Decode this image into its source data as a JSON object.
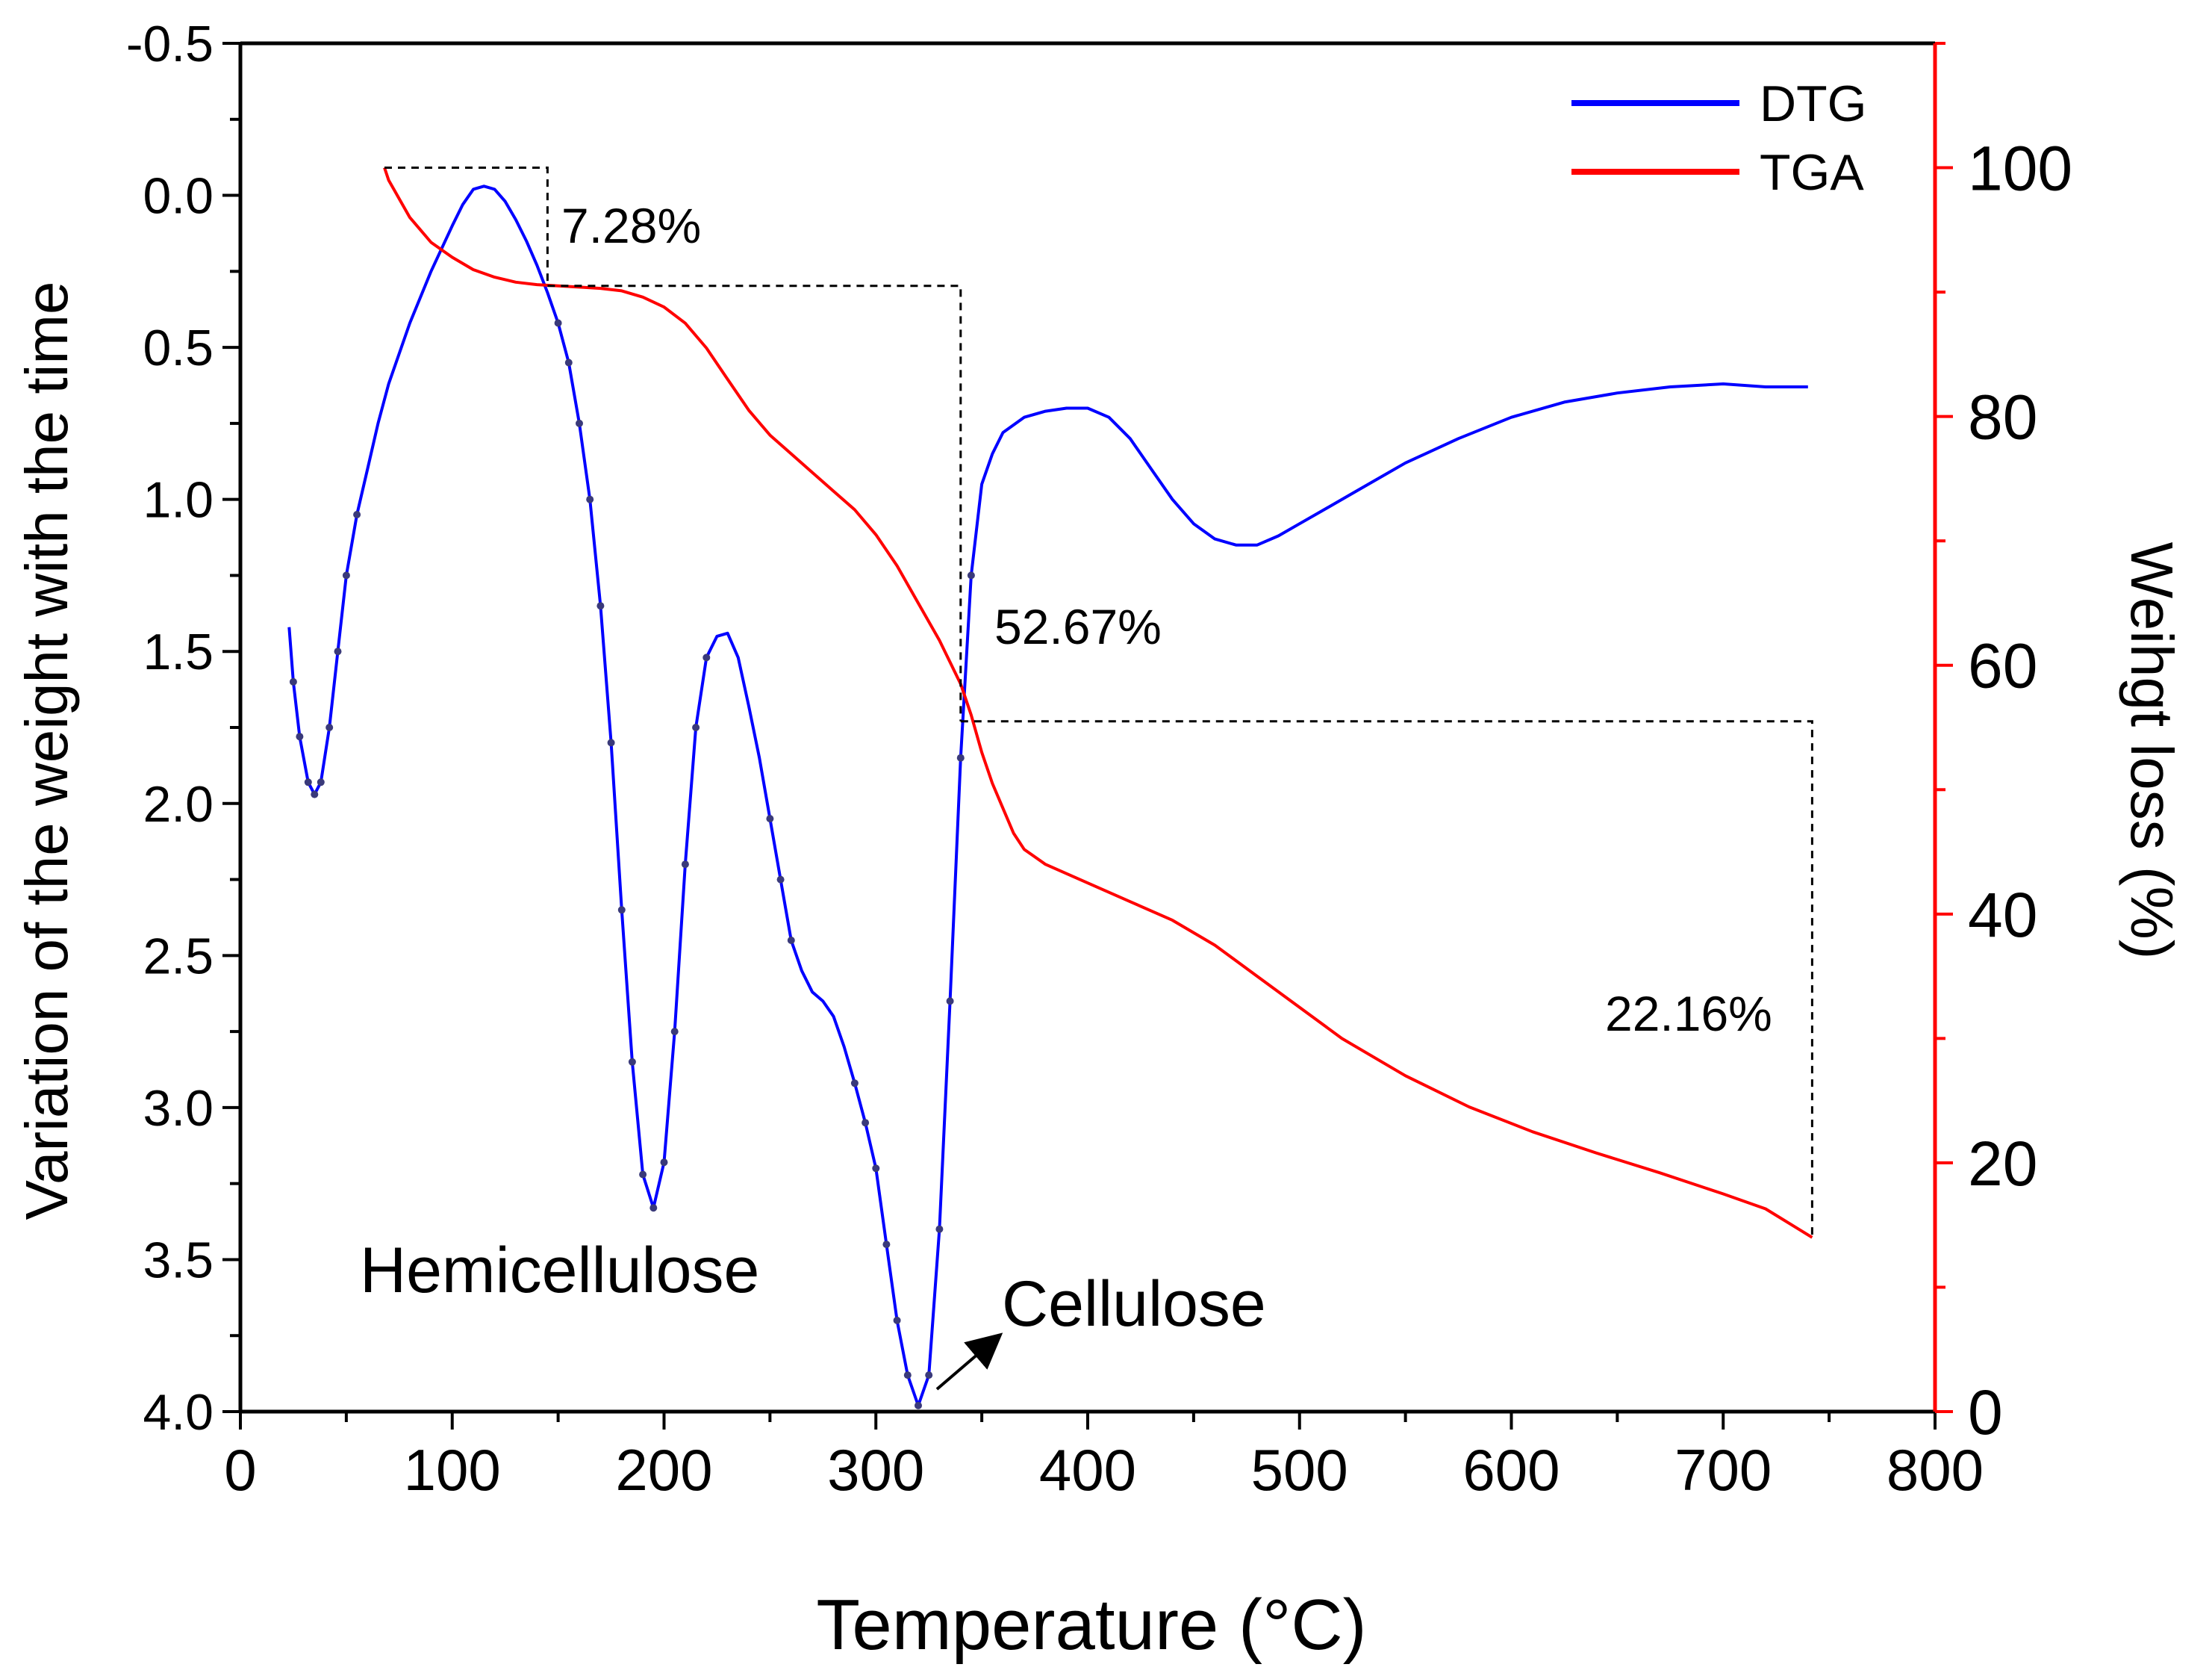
{
  "chart_data": {
    "type": "line",
    "xlabel": "Temperature (°C)",
    "ylabel_left": "Variation of the weight  with the time",
    "ylabel_right": "Weihgt loss (%)",
    "xlim": [
      0,
      800
    ],
    "ylim_left": [
      -0.5,
      4.0
    ],
    "ylim_right": [
      0,
      110
    ],
    "left_axis_inverted": true,
    "grid": false,
    "legend_position": "top-right",
    "x_ticks": [
      "0",
      "100",
      "200",
      "300",
      "400",
      "500",
      "600",
      "700",
      "800"
    ],
    "y_left_ticks": [
      "-0.5",
      "0.0",
      "0.5",
      "1.0",
      "1.5",
      "2.0",
      "2.5",
      "3.0",
      "3.5",
      "4.0"
    ],
    "y_right_ticks": [
      "0",
      "20",
      "40",
      "60",
      "80",
      "100"
    ],
    "colors": {
      "axis_left": "#000000",
      "axis_right": "#ff0000",
      "dtg": "#0000ff",
      "tga": "#ff0000",
      "markers": "#3a3a7a"
    },
    "series": [
      {
        "name": "DTG",
        "axis": "left",
        "points": [
          [
            23,
            1.42
          ],
          [
            25,
            1.6
          ],
          [
            28,
            1.78
          ],
          [
            32,
            1.93
          ],
          [
            35,
            1.97
          ],
          [
            38,
            1.93
          ],
          [
            42,
            1.75
          ],
          [
            46,
            1.5
          ],
          [
            50,
            1.25
          ],
          [
            55,
            1.05
          ],
          [
            60,
            0.9
          ],
          [
            65,
            0.75
          ],
          [
            70,
            0.62
          ],
          [
            80,
            0.42
          ],
          [
            90,
            0.25
          ],
          [
            100,
            0.1
          ],
          [
            105,
            0.03
          ],
          [
            110,
            -0.02
          ],
          [
            115,
            -0.03
          ],
          [
            120,
            -0.02
          ],
          [
            125,
            0.02
          ],
          [
            130,
            0.08
          ],
          [
            135,
            0.15
          ],
          [
            140,
            0.23
          ],
          [
            145,
            0.32
          ],
          [
            150,
            0.42
          ],
          [
            155,
            0.55
          ],
          [
            160,
            0.75
          ],
          [
            165,
            1.0
          ],
          [
            170,
            1.35
          ],
          [
            175,
            1.8
          ],
          [
            180,
            2.35
          ],
          [
            185,
            2.85
          ],
          [
            190,
            3.22
          ],
          [
            195,
            3.33
          ],
          [
            200,
            3.18
          ],
          [
            205,
            2.75
          ],
          [
            210,
            2.2
          ],
          [
            215,
            1.75
          ],
          [
            220,
            1.52
          ],
          [
            225,
            1.45
          ],
          [
            230,
            1.44
          ],
          [
            235,
            1.52
          ],
          [
            240,
            1.68
          ],
          [
            245,
            1.85
          ],
          [
            250,
            2.05
          ],
          [
            255,
            2.25
          ],
          [
            260,
            2.45
          ],
          [
            265,
            2.55
          ],
          [
            270,
            2.62
          ],
          [
            275,
            2.65
          ],
          [
            280,
            2.7
          ],
          [
            285,
            2.8
          ],
          [
            290,
            2.92
          ],
          [
            295,
            3.05
          ],
          [
            300,
            3.2
          ],
          [
            305,
            3.45
          ],
          [
            310,
            3.7
          ],
          [
            315,
            3.88
          ],
          [
            320,
            3.98
          ],
          [
            325,
            3.88
          ],
          [
            330,
            3.4
          ],
          [
            335,
            2.65
          ],
          [
            340,
            1.85
          ],
          [
            345,
            1.25
          ],
          [
            350,
            0.95
          ],
          [
            355,
            0.85
          ],
          [
            360,
            0.78
          ],
          [
            370,
            0.73
          ],
          [
            380,
            0.71
          ],
          [
            390,
            0.7
          ],
          [
            400,
            0.7
          ],
          [
            410,
            0.73
          ],
          [
            420,
            0.8
          ],
          [
            430,
            0.9
          ],
          [
            440,
            1.0
          ],
          [
            450,
            1.08
          ],
          [
            460,
            1.13
          ],
          [
            470,
            1.15
          ],
          [
            480,
            1.15
          ],
          [
            490,
            1.12
          ],
          [
            500,
            1.08
          ],
          [
            510,
            1.04
          ],
          [
            525,
            0.98
          ],
          [
            550,
            0.88
          ],
          [
            575,
            0.8
          ],
          [
            600,
            0.73
          ],
          [
            625,
            0.68
          ],
          [
            650,
            0.65
          ],
          [
            675,
            0.63
          ],
          [
            700,
            0.62
          ],
          [
            720,
            0.63
          ],
          [
            740,
            0.63
          ]
        ]
      },
      {
        "name": "TGA",
        "axis": "right",
        "points": [
          [
            68,
            100
          ],
          [
            70,
            99
          ],
          [
            75,
            97.5
          ],
          [
            80,
            96
          ],
          [
            85,
            95
          ],
          [
            90,
            94
          ],
          [
            100,
            92.8
          ],
          [
            110,
            91.8
          ],
          [
            120,
            91.2
          ],
          [
            130,
            90.8
          ],
          [
            140,
            90.6
          ],
          [
            150,
            90.5
          ],
          [
            160,
            90.4
          ],
          [
            170,
            90.3
          ],
          [
            180,
            90.1
          ],
          [
            190,
            89.6
          ],
          [
            200,
            88.8
          ],
          [
            210,
            87.5
          ],
          [
            220,
            85.5
          ],
          [
            230,
            83
          ],
          [
            240,
            80.5
          ],
          [
            250,
            78.5
          ],
          [
            260,
            77
          ],
          [
            270,
            75.5
          ],
          [
            280,
            74
          ],
          [
            290,
            72.5
          ],
          [
            300,
            70.5
          ],
          [
            310,
            68
          ],
          [
            320,
            65
          ],
          [
            330,
            62
          ],
          [
            340,
            58.5
          ],
          [
            345,
            56
          ],
          [
            350,
            53
          ],
          [
            355,
            50.5
          ],
          [
            360,
            48.5
          ],
          [
            365,
            46.5
          ],
          [
            370,
            45.2
          ],
          [
            380,
            44
          ],
          [
            400,
            42.5
          ],
          [
            420,
            41
          ],
          [
            440,
            39.5
          ],
          [
            460,
            37.5
          ],
          [
            480,
            35
          ],
          [
            500,
            32.5
          ],
          [
            520,
            30
          ],
          [
            550,
            27
          ],
          [
            580,
            24.5
          ],
          [
            610,
            22.5
          ],
          [
            640,
            20.8
          ],
          [
            670,
            19.2
          ],
          [
            700,
            17.5
          ],
          [
            720,
            16.3
          ],
          [
            742,
            14
          ]
        ]
      }
    ],
    "annotations": [
      {
        "text": "7.28%",
        "x": 152,
        "y_right": 95
      },
      {
        "text": "52.67%",
        "x": 355,
        "y_right": 62
      },
      {
        "text": "22.16%",
        "x": 645,
        "y_right": 32
      },
      {
        "text": "Hemicellulose",
        "x": 57,
        "y_left": 3.5
      },
      {
        "text": "Cellulose",
        "x": 360,
        "y_left": 3.6
      }
    ],
    "guides": [
      {
        "points_right_axis": [
          [
            68,
            100
          ],
          [
            145,
            100
          ],
          [
            145,
            90.5
          ]
        ]
      },
      {
        "points_right_axis": [
          [
            145,
            90.5
          ],
          [
            340,
            90.5
          ],
          [
            340,
            55.5
          ]
        ]
      },
      {
        "points_right_axis": [
          [
            340,
            55.5
          ],
          [
            742,
            55.5
          ],
          [
            742,
            14
          ]
        ]
      }
    ],
    "arrow": {
      "from": [
        330,
        3.9
      ],
      "to": [
        360,
        3.7
      ],
      "axis": "left"
    }
  }
}
